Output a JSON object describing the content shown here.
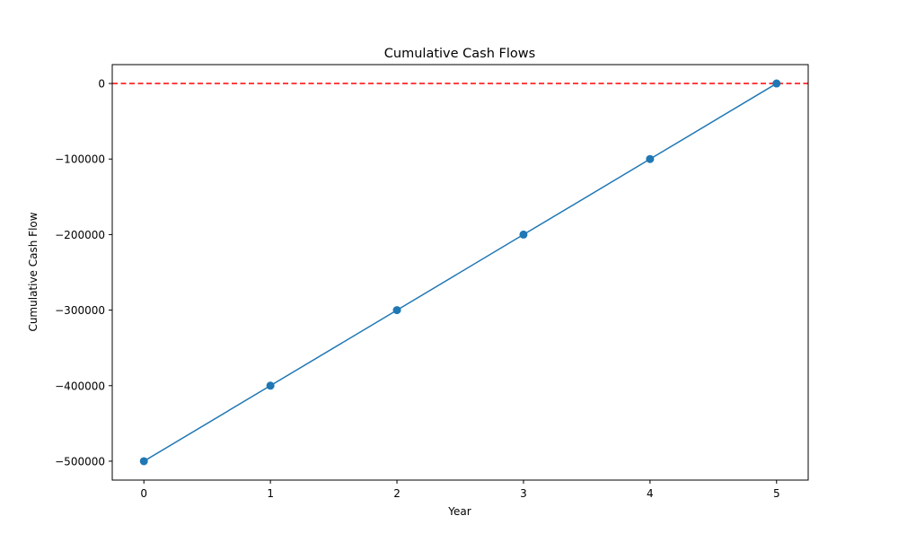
{
  "chart_data": {
    "type": "line",
    "title": "Cumulative Cash Flows",
    "xlabel": "Year",
    "ylabel": "Cumulative Cash Flow",
    "x": [
      0,
      1,
      2,
      3,
      4,
      5
    ],
    "series": [
      {
        "values": [
          -500000,
          -400000,
          -300000,
          -200000,
          -100000,
          0
        ],
        "color": "#1f77b4",
        "marker": "circle"
      }
    ],
    "reference_line": {
      "y": 0,
      "color": "#ff0000",
      "style": "dashed"
    },
    "xlim": [
      -0.25,
      5.25
    ],
    "ylim": [
      -525000,
      25000
    ],
    "x_ticks": [
      "0",
      "1",
      "2",
      "3",
      "4",
      "5"
    ],
    "y_ticks": [
      "0",
      "−100000",
      "−200000",
      "−300000",
      "−400000",
      "−500000"
    ],
    "y_tick_values": [
      0,
      -100000,
      -200000,
      -300000,
      -400000,
      -500000
    ],
    "grid": false,
    "legend": "none"
  }
}
